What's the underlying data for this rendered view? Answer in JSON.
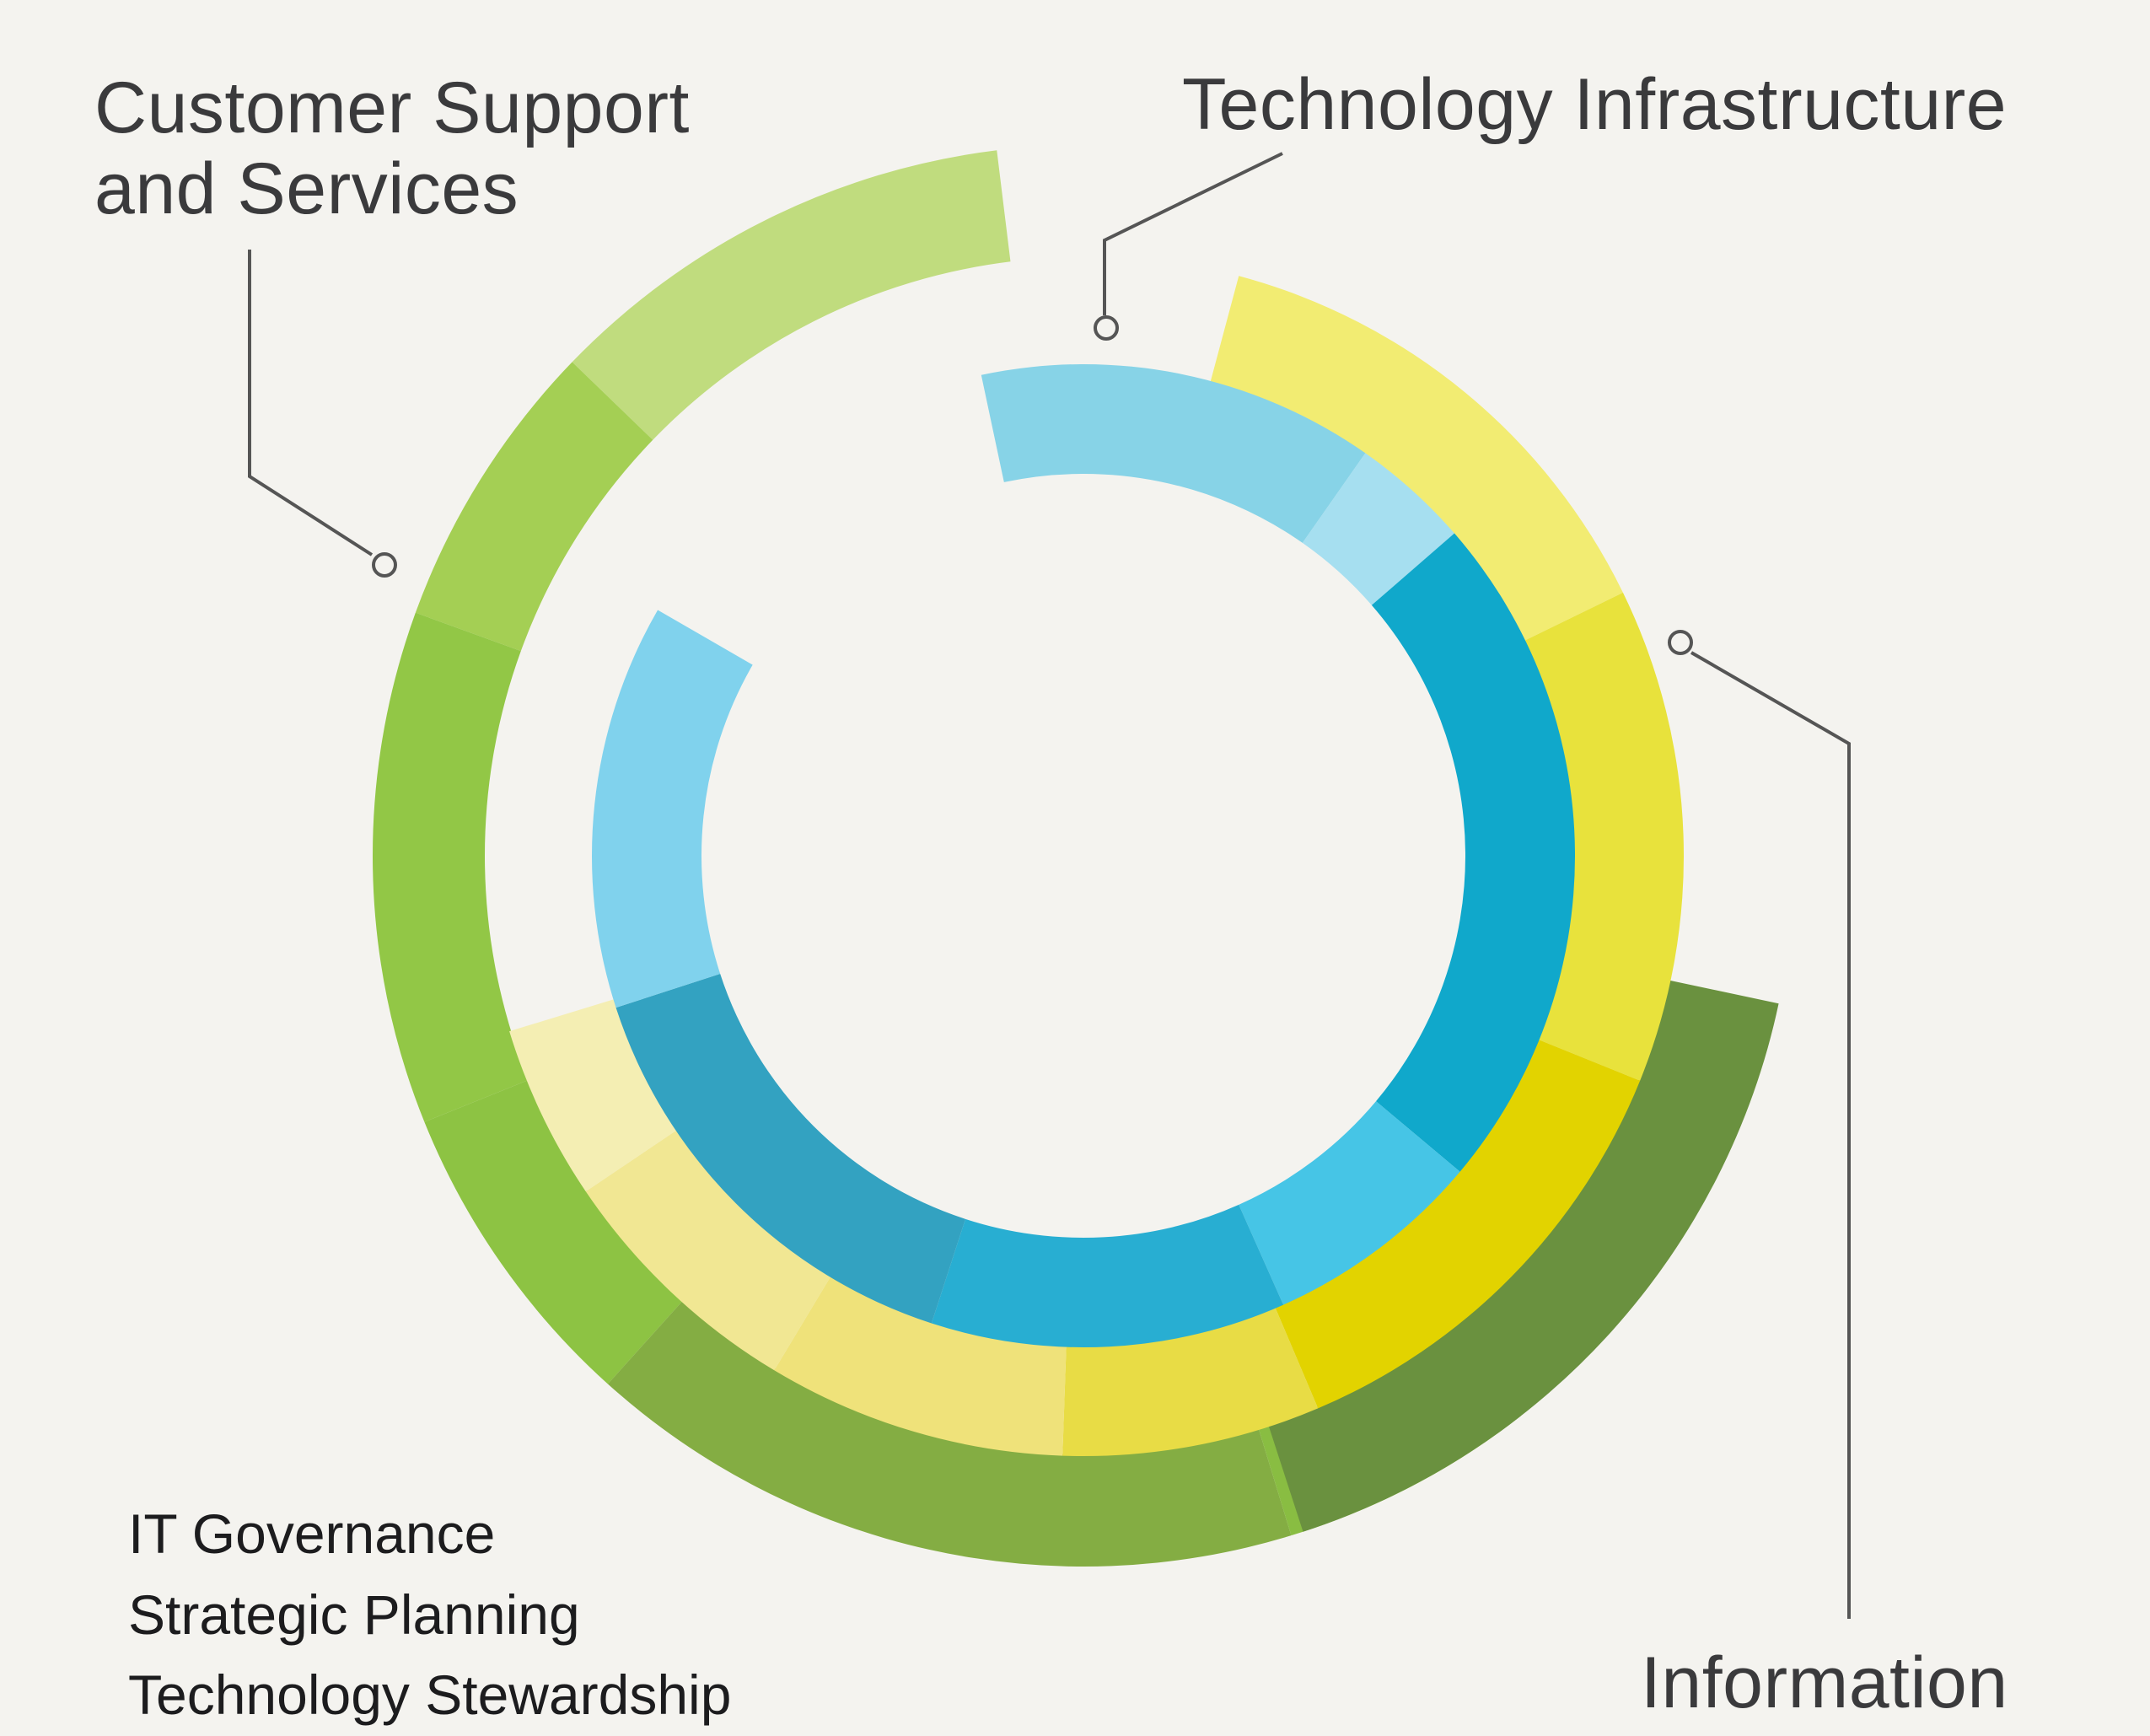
{
  "labels": {
    "customer_line1": "Customer Support",
    "customer_line2": "and Services",
    "technology": "Technology Infrastructure",
    "information": "Information",
    "list": [
      "IT Governance",
      "Strategic Planning",
      "Technology Stewardship"
    ]
  },
  "colors": {
    "background": "#f4f3ef",
    "outer_green": [
      "#c0dc7e",
      "#a4cf54",
      "#92c746",
      "#8dc343",
      "#84ad43",
      "#89bd42",
      "#6a913f"
    ],
    "middle_yellow": [
      "#f2ec72",
      "#e8e23c",
      "#e2d300",
      "#e8dc45",
      "#efe27a",
      "#f1e793",
      "#f4eeb3"
    ],
    "inner_blue": [
      "#87d3e7",
      "#a6dff0",
      "#10a8cb",
      "#46c5e6",
      "#28aed2",
      "#33a2c1",
      "#80d2ed"
    ],
    "connector": "#555555"
  }
}
